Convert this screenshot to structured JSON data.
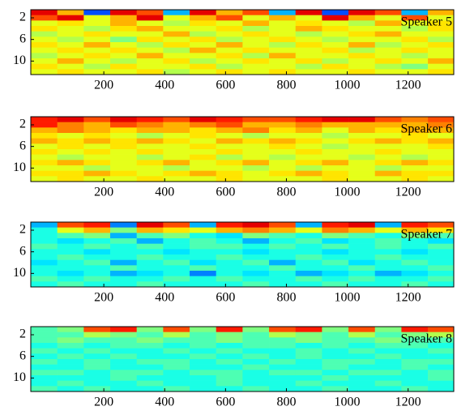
{
  "chart_data": [
    {
      "type": "heatmap",
      "label": "Speaker 5",
      "colormap": "jet",
      "zlim": [
        0,
        1
      ],
      "xlim": [
        -40,
        1350
      ],
      "xticks": [
        200,
        400,
        600,
        800,
        1000,
        1200
      ],
      "ylim": [
        0.5,
        12.5
      ],
      "yticks": [
        2,
        6,
        10
      ],
      "x_edges": [
        -40,
        47,
        134,
        221,
        308,
        395,
        482,
        569,
        656,
        743,
        830,
        917,
        1004,
        1091,
        1178,
        1265,
        1350
      ],
      "y": [
        1,
        2,
        3,
        4,
        5,
        6,
        7,
        8,
        9,
        10,
        11,
        12
      ],
      "values": [
        [
          0.9,
          0.7,
          0.2,
          0.9,
          0.8,
          0.3,
          0.9,
          0.7,
          0.8,
          0.3,
          0.9,
          0.2,
          0.9,
          0.8,
          0.3,
          0.7
        ],
        [
          0.8,
          0.9,
          0.6,
          0.7,
          0.9,
          0.6,
          0.7,
          0.8,
          0.6,
          0.7,
          0.6,
          0.9,
          0.7,
          0.6,
          0.8,
          0.6
        ],
        [
          0.6,
          0.65,
          0.6,
          0.7,
          0.6,
          0.55,
          0.65,
          0.6,
          0.7,
          0.6,
          0.65,
          0.6,
          0.55,
          0.7,
          0.6,
          0.65
        ],
        [
          0.65,
          0.6,
          0.55,
          0.65,
          0.7,
          0.6,
          0.6,
          0.65,
          0.55,
          0.6,
          0.7,
          0.65,
          0.6,
          0.6,
          0.55,
          0.65
        ],
        [
          0.55,
          0.6,
          0.65,
          0.6,
          0.6,
          0.7,
          0.55,
          0.6,
          0.65,
          0.6,
          0.55,
          0.6,
          0.65,
          0.7,
          0.6,
          0.6
        ],
        [
          0.6,
          0.55,
          0.6,
          0.5,
          0.65,
          0.6,
          0.65,
          0.55,
          0.6,
          0.65,
          0.6,
          0.55,
          0.6,
          0.6,
          0.65,
          0.55
        ],
        [
          0.65,
          0.6,
          0.7,
          0.6,
          0.55,
          0.65,
          0.6,
          0.7,
          0.6,
          0.55,
          0.65,
          0.6,
          0.7,
          0.55,
          0.6,
          0.65
        ],
        [
          0.6,
          0.65,
          0.6,
          0.65,
          0.6,
          0.55,
          0.7,
          0.6,
          0.65,
          0.6,
          0.6,
          0.65,
          0.55,
          0.6,
          0.65,
          0.6
        ],
        [
          0.55,
          0.6,
          0.65,
          0.6,
          0.7,
          0.6,
          0.6,
          0.65,
          0.55,
          0.7,
          0.6,
          0.6,
          0.65,
          0.6,
          0.55,
          0.6
        ],
        [
          0.6,
          0.7,
          0.6,
          0.55,
          0.6,
          0.65,
          0.55,
          0.6,
          0.65,
          0.6,
          0.65,
          0.55,
          0.6,
          0.65,
          0.6,
          0.7
        ],
        [
          0.65,
          0.6,
          0.55,
          0.65,
          0.6,
          0.6,
          0.65,
          0.55,
          0.6,
          0.6,
          0.55,
          0.65,
          0.6,
          0.55,
          0.5,
          0.6
        ],
        [
          0.6,
          0.65,
          0.6,
          0.6,
          0.65,
          0.55,
          0.6,
          0.65,
          0.6,
          0.65,
          0.6,
          0.6,
          0.65,
          0.6,
          0.6,
          0.65
        ]
      ]
    },
    {
      "type": "heatmap",
      "label": "Speaker 6",
      "colormap": "jet",
      "zlim": [
        0,
        1
      ],
      "xlim": [
        -40,
        1350
      ],
      "xticks": [
        200,
        400,
        600,
        800,
        1000,
        1200
      ],
      "ylim": [
        0.5,
        12.5
      ],
      "yticks": [
        2,
        6,
        10
      ],
      "x_edges": [
        -40,
        47,
        134,
        221,
        308,
        395,
        482,
        569,
        656,
        743,
        830,
        917,
        1004,
        1091,
        1178,
        1265,
        1350
      ],
      "y": [
        1,
        2,
        3,
        4,
        5,
        6,
        7,
        8,
        9,
        10,
        11,
        12
      ],
      "values": [
        [
          0.85,
          0.9,
          0.8,
          0.9,
          0.85,
          0.8,
          0.9,
          0.85,
          0.8,
          0.8,
          0.85,
          0.9,
          0.9,
          0.8,
          0.75,
          0.8
        ],
        [
          0.85,
          0.75,
          0.7,
          0.8,
          0.75,
          0.7,
          0.75,
          0.8,
          0.7,
          0.7,
          0.75,
          0.7,
          0.7,
          0.7,
          0.7,
          0.75
        ],
        [
          0.7,
          0.75,
          0.7,
          0.65,
          0.7,
          0.7,
          0.65,
          0.7,
          0.75,
          0.65,
          0.7,
          0.6,
          0.7,
          0.65,
          0.7,
          0.7
        ],
        [
          0.65,
          0.6,
          0.65,
          0.6,
          0.55,
          0.6,
          0.65,
          0.6,
          0.55,
          0.6,
          0.6,
          0.55,
          0.6,
          0.6,
          0.65,
          0.6
        ],
        [
          0.7,
          0.65,
          0.7,
          0.65,
          0.7,
          0.65,
          0.6,
          0.7,
          0.65,
          0.7,
          0.65,
          0.6,
          0.65,
          0.7,
          0.65,
          0.7
        ],
        [
          0.6,
          0.65,
          0.6,
          0.65,
          0.6,
          0.6,
          0.65,
          0.6,
          0.6,
          0.65,
          0.6,
          0.55,
          0.6,
          0.6,
          0.6,
          0.65
        ],
        [
          0.65,
          0.6,
          0.65,
          0.6,
          0.65,
          0.6,
          0.6,
          0.65,
          0.6,
          0.6,
          0.65,
          0.6,
          0.6,
          0.65,
          0.6,
          0.6
        ],
        [
          0.6,
          0.55,
          0.6,
          0.6,
          0.55,
          0.6,
          0.65,
          0.55,
          0.6,
          0.55,
          0.6,
          0.6,
          0.55,
          0.6,
          0.55,
          0.6
        ],
        [
          0.65,
          0.7,
          0.65,
          0.6,
          0.65,
          0.7,
          0.6,
          0.65,
          0.7,
          0.6,
          0.65,
          0.7,
          0.6,
          0.65,
          0.7,
          0.65
        ],
        [
          0.6,
          0.6,
          0.55,
          0.6,
          0.6,
          0.55,
          0.6,
          0.6,
          0.55,
          0.6,
          0.55,
          0.6,
          0.6,
          0.55,
          0.6,
          0.6
        ],
        [
          0.65,
          0.65,
          0.7,
          0.65,
          0.6,
          0.65,
          0.7,
          0.65,
          0.6,
          0.65,
          0.7,
          0.65,
          0.6,
          0.7,
          0.65,
          0.65
        ],
        [
          0.6,
          0.65,
          0.6,
          0.6,
          0.65,
          0.6,
          0.6,
          0.65,
          0.6,
          0.6,
          0.6,
          0.65,
          0.6,
          0.6,
          0.65,
          0.6
        ]
      ]
    },
    {
      "type": "heatmap",
      "label": "Speaker 7",
      "colormap": "jet",
      "zlim": [
        0,
        1
      ],
      "xlim": [
        -40,
        1350
      ],
      "xticks": [
        200,
        400,
        600,
        800,
        1000,
        1200
      ],
      "ylim": [
        0.5,
        12.5
      ],
      "yticks": [
        2,
        6,
        10
      ],
      "x_edges": [
        -40,
        47,
        134,
        221,
        308,
        395,
        482,
        569,
        656,
        743,
        830,
        917,
        1004,
        1091,
        1178,
        1265,
        1350
      ],
      "y": [
        1,
        2,
        3,
        4,
        5,
        6,
        7,
        8,
        9,
        10,
        11,
        12
      ],
      "values": [
        [
          0.3,
          0.8,
          0.85,
          0.25,
          0.9,
          0.8,
          0.3,
          0.85,
          0.9,
          0.8,
          0.3,
          0.85,
          0.9,
          0.3,
          0.85,
          0.8
        ],
        [
          0.4,
          0.6,
          0.7,
          0.5,
          0.7,
          0.65,
          0.6,
          0.7,
          0.75,
          0.7,
          0.6,
          0.75,
          0.7,
          0.6,
          0.7,
          0.65
        ],
        [
          0.4,
          0.45,
          0.5,
          0.3,
          0.45,
          0.5,
          0.4,
          0.35,
          0.5,
          0.45,
          0.4,
          0.5,
          0.45,
          0.4,
          0.5,
          0.45
        ],
        [
          0.4,
          0.35,
          0.4,
          0.45,
          0.3,
          0.4,
          0.45,
          0.4,
          0.3,
          0.4,
          0.45,
          0.35,
          0.4,
          0.45,
          0.4,
          0.35
        ],
        [
          0.45,
          0.4,
          0.45,
          0.4,
          0.45,
          0.4,
          0.45,
          0.45,
          0.4,
          0.45,
          0.4,
          0.45,
          0.4,
          0.45,
          0.4,
          0.45
        ],
        [
          0.4,
          0.4,
          0.35,
          0.4,
          0.4,
          0.35,
          0.4,
          0.4,
          0.35,
          0.4,
          0.4,
          0.35,
          0.4,
          0.4,
          0.35,
          0.4
        ],
        [
          0.4,
          0.45,
          0.4,
          0.4,
          0.45,
          0.4,
          0.4,
          0.45,
          0.4,
          0.4,
          0.45,
          0.4,
          0.4,
          0.45,
          0.4,
          0.4
        ],
        [
          0.35,
          0.4,
          0.45,
          0.3,
          0.4,
          0.45,
          0.35,
          0.4,
          0.45,
          0.3,
          0.4,
          0.45,
          0.35,
          0.4,
          0.45,
          0.4
        ],
        [
          0.4,
          0.4,
          0.4,
          0.45,
          0.4,
          0.4,
          0.45,
          0.4,
          0.4,
          0.45,
          0.4,
          0.4,
          0.45,
          0.4,
          0.4,
          0.45
        ],
        [
          0.4,
          0.35,
          0.4,
          0.3,
          0.35,
          0.4,
          0.25,
          0.4,
          0.35,
          0.4,
          0.3,
          0.35,
          0.4,
          0.3,
          0.35,
          0.4
        ],
        [
          0.45,
          0.4,
          0.45,
          0.4,
          0.4,
          0.45,
          0.4,
          0.45,
          0.4,
          0.4,
          0.45,
          0.4,
          0.45,
          0.4,
          0.4,
          0.45
        ],
        [
          0.4,
          0.45,
          0.4,
          0.4,
          0.45,
          0.4,
          0.4,
          0.4,
          0.45,
          0.4,
          0.4,
          0.45,
          0.4,
          0.4,
          0.45,
          0.4
        ]
      ]
    },
    {
      "type": "heatmap",
      "label": "Speaker 8",
      "colormap": "jet",
      "zlim": [
        0,
        1
      ],
      "xlim": [
        -40,
        1350
      ],
      "xticks": [
        200,
        400,
        600,
        800,
        1000,
        1200
      ],
      "ylim": [
        0.5,
        12.5
      ],
      "yticks": [
        2,
        6,
        10
      ],
      "x_edges": [
        -40,
        47,
        134,
        221,
        308,
        395,
        482,
        569,
        656,
        743,
        830,
        917,
        1004,
        1091,
        1178,
        1265,
        1350
      ],
      "y": [
        1,
        2,
        3,
        4,
        5,
        6,
        7,
        8,
        9,
        10,
        11,
        12
      ],
      "values": [
        [
          0.45,
          0.5,
          0.8,
          0.85,
          0.5,
          0.8,
          0.5,
          0.85,
          0.5,
          0.8,
          0.85,
          0.5,
          0.8,
          0.5,
          0.85,
          0.8
        ],
        [
          0.45,
          0.45,
          0.55,
          0.5,
          0.45,
          0.55,
          0.45,
          0.5,
          0.45,
          0.55,
          0.5,
          0.45,
          0.55,
          0.45,
          0.5,
          0.55
        ],
        [
          0.45,
          0.5,
          0.45,
          0.45,
          0.5,
          0.45,
          0.45,
          0.5,
          0.45,
          0.45,
          0.5,
          0.45,
          0.45,
          0.5,
          0.45,
          0.45
        ],
        [
          0.4,
          0.45,
          0.4,
          0.45,
          0.45,
          0.4,
          0.45,
          0.4,
          0.45,
          0.45,
          0.4,
          0.45,
          0.4,
          0.45,
          0.45,
          0.4
        ],
        [
          0.45,
          0.4,
          0.45,
          0.4,
          0.4,
          0.45,
          0.4,
          0.45,
          0.4,
          0.4,
          0.45,
          0.4,
          0.45,
          0.4,
          0.4,
          0.45
        ],
        [
          0.4,
          0.45,
          0.4,
          0.45,
          0.4,
          0.4,
          0.45,
          0.4,
          0.45,
          0.4,
          0.45,
          0.4,
          0.4,
          0.45,
          0.4,
          0.4
        ],
        [
          0.45,
          0.4,
          0.45,
          0.4,
          0.45,
          0.45,
          0.4,
          0.45,
          0.4,
          0.45,
          0.4,
          0.45,
          0.45,
          0.4,
          0.45,
          0.45
        ],
        [
          0.4,
          0.4,
          0.45,
          0.4,
          0.4,
          0.45,
          0.4,
          0.4,
          0.45,
          0.4,
          0.4,
          0.45,
          0.4,
          0.4,
          0.45,
          0.4
        ],
        [
          0.45,
          0.45,
          0.4,
          0.45,
          0.45,
          0.4,
          0.45,
          0.45,
          0.4,
          0.45,
          0.45,
          0.4,
          0.45,
          0.45,
          0.4,
          0.45
        ],
        [
          0.4,
          0.4,
          0.4,
          0.45,
          0.4,
          0.4,
          0.4,
          0.45,
          0.4,
          0.4,
          0.4,
          0.45,
          0.4,
          0.4,
          0.4,
          0.45
        ],
        [
          0.4,
          0.45,
          0.4,
          0.4,
          0.45,
          0.4,
          0.4,
          0.45,
          0.4,
          0.4,
          0.45,
          0.4,
          0.4,
          0.45,
          0.4,
          0.4
        ],
        [
          0.45,
          0.4,
          0.45,
          0.4,
          0.4,
          0.45,
          0.4,
          0.4,
          0.45,
          0.4,
          0.4,
          0.45,
          0.4,
          0.4,
          0.45,
          0.4
        ]
      ]
    }
  ]
}
